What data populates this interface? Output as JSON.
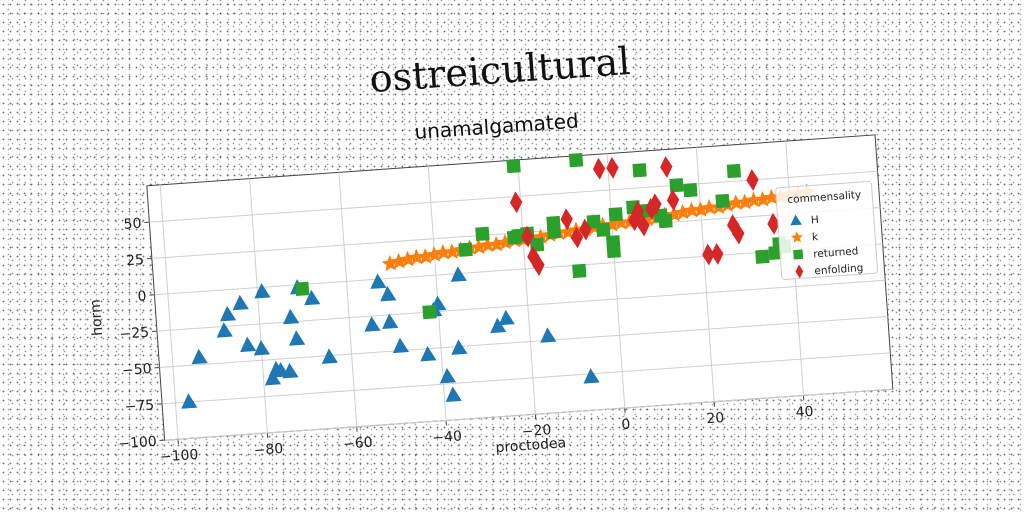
{
  "chart_data": {
    "type": "scatter",
    "title": "ostreicultural",
    "subtitle": "unamalgamated",
    "xlabel": "proctodea",
    "ylabel": "horm",
    "xlim": [
      -103,
      60
    ],
    "ylim": [
      -100,
      75
    ],
    "x_ticks": [
      -100,
      -80,
      -60,
      -40,
      -20,
      0,
      20,
      40
    ],
    "y_ticks": [
      -100,
      -75,
      -50,
      -25,
      0,
      25,
      50
    ],
    "grid": true,
    "legend": {
      "title": "commensality",
      "placement": "right"
    },
    "series": [
      {
        "name": "H",
        "marker": "triangle",
        "color": "#1f77b4",
        "points": [
          [
            -97,
            -75
          ],
          [
            -94,
            -45
          ],
          [
            -88,
            -28
          ],
          [
            -87,
            -17
          ],
          [
            -84,
            -10
          ],
          [
            -83,
            -39
          ],
          [
            -80,
            -42
          ],
          [
            -79,
            -3
          ],
          [
            -78,
            -63
          ],
          [
            -77,
            -57
          ],
          [
            -76,
            -58
          ],
          [
            -74,
            -59
          ],
          [
            -73,
            -22
          ],
          [
            -72,
            -37
          ],
          [
            -71,
            -2
          ],
          [
            -68,
            -10
          ],
          [
            -65,
            -51
          ],
          [
            -55,
            -31
          ],
          [
            -53,
            -2
          ],
          [
            -51,
            -30
          ],
          [
            -51,
            -11
          ],
          [
            -49,
            -47
          ],
          [
            -43,
            -54
          ],
          [
            -41,
            -24
          ],
          [
            -40,
            -20
          ],
          [
            -39,
            -70
          ],
          [
            -38,
            -83
          ],
          [
            -36,
            -51
          ],
          [
            -35,
            -1
          ],
          [
            -27,
            -38
          ],
          [
            -25,
            -33
          ],
          [
            -16,
            -47
          ],
          [
            -7,
            -77
          ]
        ]
      },
      {
        "name": "k",
        "marker": "star",
        "color": "#ff7f0e",
        "points": [
          [
            -50,
            10
          ],
          [
            -48,
            11
          ],
          [
            -46,
            12
          ],
          [
            -44,
            13
          ],
          [
            -42,
            13
          ],
          [
            -40,
            14
          ],
          [
            -38,
            15
          ],
          [
            -36,
            15
          ],
          [
            -34,
            16
          ],
          [
            -32,
            17
          ],
          [
            -30,
            17
          ],
          [
            -28,
            18
          ],
          [
            -26,
            18
          ],
          [
            -24,
            19
          ],
          [
            -22,
            20
          ],
          [
            -20,
            20
          ],
          [
            -18,
            21
          ],
          [
            -16,
            21
          ],
          [
            -14,
            22
          ],
          [
            -12,
            23
          ],
          [
            -10,
            23
          ],
          [
            -8,
            24
          ],
          [
            -6,
            24
          ],
          [
            -4,
            25
          ],
          [
            -2,
            26
          ],
          [
            0,
            26
          ],
          [
            2,
            27
          ],
          [
            4,
            27
          ],
          [
            6,
            28
          ],
          [
            8,
            28
          ],
          [
            10,
            29
          ],
          [
            12,
            30
          ],
          [
            14,
            30
          ],
          [
            16,
            31
          ],
          [
            18,
            32
          ],
          [
            20,
            32
          ],
          [
            22,
            33
          ],
          [
            24,
            33
          ],
          [
            26,
            34
          ],
          [
            28,
            35
          ],
          [
            30,
            35
          ],
          [
            32,
            36
          ],
          [
            34,
            36
          ],
          [
            36,
            37
          ],
          [
            38,
            37
          ],
          [
            40,
            38
          ],
          [
            42,
            38
          ],
          [
            44,
            39
          ]
        ]
      },
      {
        "name": "returned",
        "marker": "square",
        "color": "#2ca02c",
        "points": [
          [
            -70,
            -3
          ],
          [
            -42,
            -25
          ],
          [
            -33,
            16
          ],
          [
            -29,
            26
          ],
          [
            -22,
            22
          ],
          [
            -21,
            23
          ],
          [
            -21,
            71
          ],
          [
            -19,
            24
          ],
          [
            -17,
            16
          ],
          [
            -13,
            30
          ],
          [
            -13,
            24
          ],
          [
            -8,
            -4
          ],
          [
            -7,
            72
          ],
          [
            -4,
            29
          ],
          [
            -2,
            23
          ],
          [
            0,
            14
          ],
          [
            0,
            8
          ],
          [
            1,
            33
          ],
          [
            5,
            37
          ],
          [
            7,
            62
          ],
          [
            8,
            34
          ],
          [
            11,
            30
          ],
          [
            12,
            26
          ],
          [
            15,
            50
          ],
          [
            18,
            46
          ],
          [
            25,
            37
          ],
          [
            28,
            57
          ],
          [
            33,
            -3
          ],
          [
            36,
            -1
          ],
          [
            37,
            5
          ],
          [
            38,
            3
          ]
        ]
      },
      {
        "name": "enfolding",
        "marker": "diamond",
        "color": "#d62728",
        "points": [
          [
            -21,
            46
          ],
          [
            -19,
            22
          ],
          [
            -18,
            8
          ],
          [
            -17,
            2
          ],
          [
            -10,
            32
          ],
          [
            -8,
            19
          ],
          [
            -6,
            24
          ],
          [
            -2,
            65
          ],
          [
            1,
            65
          ],
          [
            5,
            28
          ],
          [
            6,
            34
          ],
          [
            7,
            24
          ],
          [
            9,
            35
          ],
          [
            10,
            38
          ],
          [
            13,
            63
          ],
          [
            14,
            40
          ],
          [
            21,
            1
          ],
          [
            23,
            1
          ],
          [
            27,
            20
          ],
          [
            28,
            14
          ],
          [
            32,
            50
          ],
          [
            36,
            19
          ]
        ]
      }
    ]
  }
}
